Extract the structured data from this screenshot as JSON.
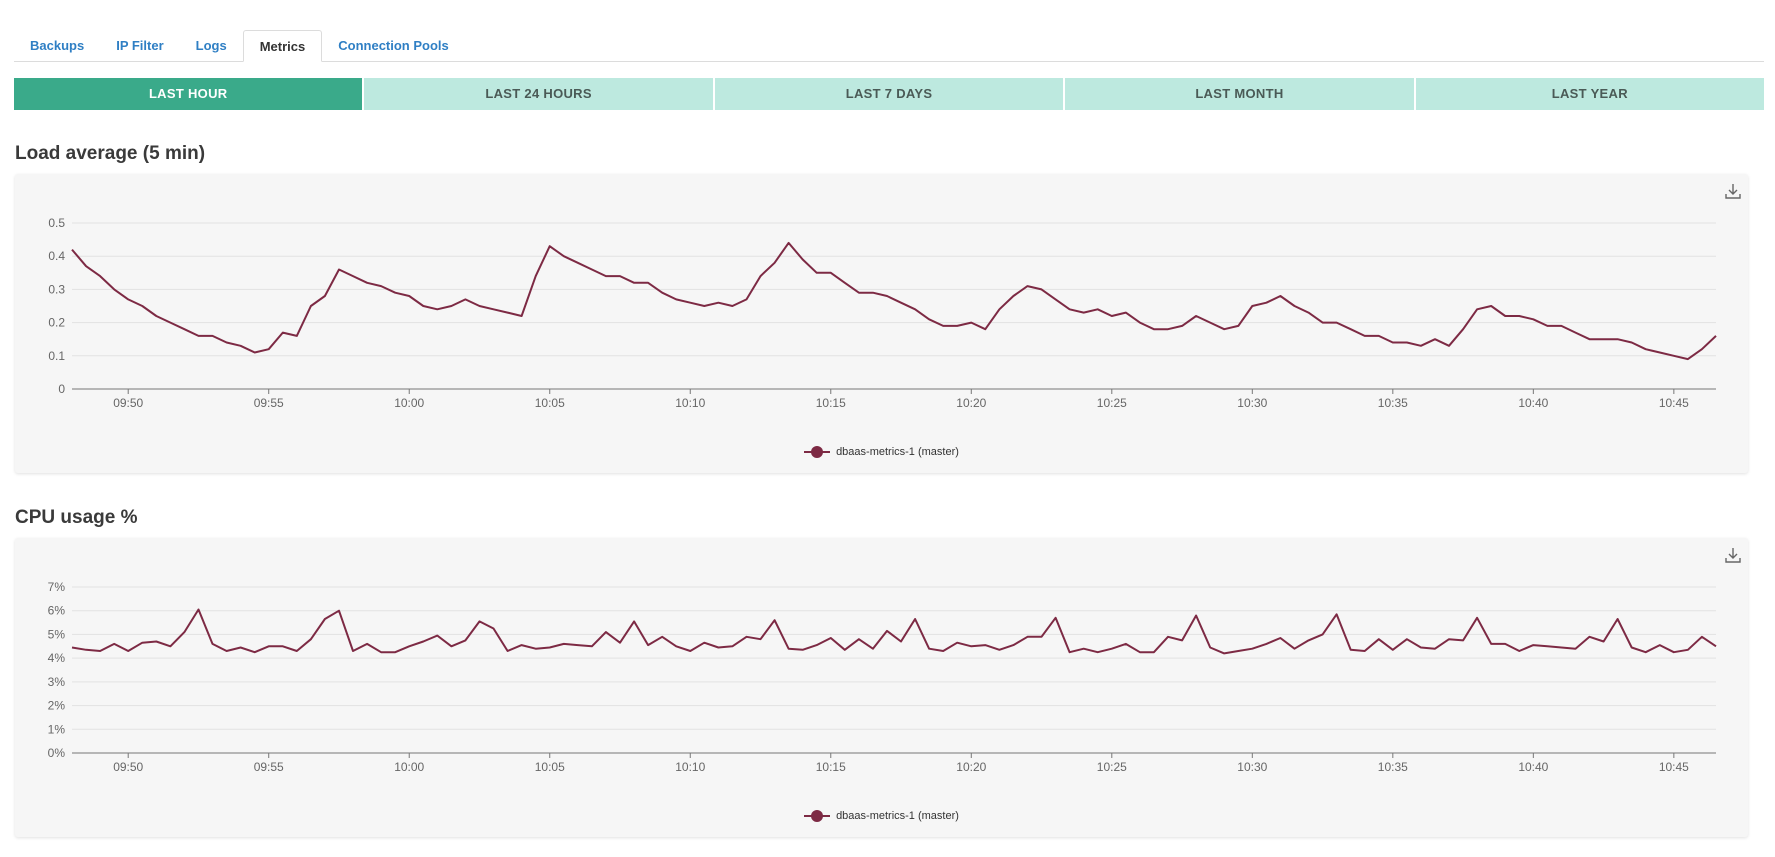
{
  "tabs": [
    {
      "label": "Backups",
      "active": false
    },
    {
      "label": "IP Filter",
      "active": false
    },
    {
      "label": "Logs",
      "active": false
    },
    {
      "label": "Metrics",
      "active": true
    },
    {
      "label": "Connection Pools",
      "active": false
    }
  ],
  "ranges": [
    {
      "label": "LAST HOUR",
      "active": true
    },
    {
      "label": "LAST 24 HOURS",
      "active": false
    },
    {
      "label": "LAST 7 DAYS",
      "active": false
    },
    {
      "label": "LAST MONTH",
      "active": false
    },
    {
      "label": "LAST YEAR",
      "active": false
    }
  ],
  "colors": {
    "accent": "#3aaa8a",
    "range_bg": "#bde9df",
    "series": "#7d2a44",
    "link": "#2f7fc4"
  },
  "chart_data": [
    {
      "type": "line",
      "title": "Load average (5 min)",
      "x_ticks": [
        "09:50",
        "09:55",
        "10:00",
        "10:05",
        "10:10",
        "10:15",
        "10:20",
        "10:25",
        "10:30",
        "10:35",
        "10:40",
        "10:45"
      ],
      "y_ticks": [
        "0",
        "0.1",
        "0.2",
        "0.3",
        "0.4",
        "0.5"
      ],
      "ylim": [
        0,
        0.5
      ],
      "xlim_minutes_from_first_tick": [
        -2,
        56.5
      ],
      "grid": true,
      "legend_position": "bottom-center",
      "download_icon": "download-icon",
      "series": [
        {
          "name": "dbaas-metrics-1 (master)",
          "color": "#7d2a44",
          "values": [
            0.42,
            0.37,
            0.34,
            0.3,
            0.27,
            0.25,
            0.22,
            0.2,
            0.18,
            0.16,
            0.16,
            0.14,
            0.13,
            0.11,
            0.12,
            0.17,
            0.16,
            0.25,
            0.28,
            0.36,
            0.34,
            0.32,
            0.31,
            0.29,
            0.28,
            0.25,
            0.24,
            0.25,
            0.27,
            0.25,
            0.24,
            0.23,
            0.22,
            0.34,
            0.43,
            0.4,
            0.38,
            0.36,
            0.34,
            0.34,
            0.32,
            0.32,
            0.29,
            0.27,
            0.26,
            0.25,
            0.26,
            0.25,
            0.27,
            0.34,
            0.38,
            0.44,
            0.39,
            0.35,
            0.35,
            0.32,
            0.29,
            0.29,
            0.28,
            0.26,
            0.24,
            0.21,
            0.19,
            0.19,
            0.2,
            0.18,
            0.24,
            0.28,
            0.31,
            0.3,
            0.27,
            0.24,
            0.23,
            0.24,
            0.22,
            0.23,
            0.2,
            0.18,
            0.18,
            0.19,
            0.22,
            0.2,
            0.18,
            0.19,
            0.25,
            0.26,
            0.28,
            0.25,
            0.23,
            0.2,
            0.2,
            0.18,
            0.16,
            0.16,
            0.14,
            0.14,
            0.13,
            0.15,
            0.13,
            0.18,
            0.24,
            0.25,
            0.22,
            0.22,
            0.21,
            0.19,
            0.19,
            0.17,
            0.15,
            0.15,
            0.15,
            0.14,
            0.12,
            0.11,
            0.1,
            0.09,
            0.12,
            0.16
          ]
        }
      ]
    },
    {
      "type": "line",
      "title": "CPU usage %",
      "x_ticks": [
        "09:50",
        "09:55",
        "10:00",
        "10:05",
        "10:10",
        "10:15",
        "10:20",
        "10:25",
        "10:30",
        "10:35",
        "10:40",
        "10:45"
      ],
      "y_ticks": [
        "0%",
        "1%",
        "2%",
        "3%",
        "4%",
        "5%",
        "6%",
        "7%"
      ],
      "ylim": [
        0,
        7
      ],
      "xlim_minutes_from_first_tick": [
        -2,
        56.5
      ],
      "grid": true,
      "legend_position": "bottom-center",
      "download_icon": "download-icon",
      "series": [
        {
          "name": "dbaas-metrics-1 (master)",
          "color": "#7d2a44",
          "values": [
            4.45,
            4.35,
            4.3,
            4.6,
            4.3,
            4.65,
            4.7,
            4.5,
            5.1,
            6.05,
            4.6,
            4.3,
            4.45,
            4.25,
            4.5,
            4.5,
            4.3,
            4.8,
            5.65,
            6.0,
            4.3,
            4.6,
            4.25,
            4.25,
            4.5,
            4.7,
            4.95,
            4.5,
            4.75,
            5.55,
            5.25,
            4.3,
            4.55,
            4.4,
            4.45,
            4.6,
            4.55,
            4.5,
            5.1,
            4.65,
            5.55,
            4.55,
            4.9,
            4.5,
            4.3,
            4.65,
            4.45,
            4.5,
            4.9,
            4.8,
            5.6,
            4.4,
            4.35,
            4.55,
            4.85,
            4.35,
            4.8,
            4.4,
            5.15,
            4.7,
            5.65,
            4.4,
            4.3,
            4.65,
            4.5,
            4.55,
            4.35,
            4.55,
            4.9,
            4.9,
            5.7,
            4.25,
            4.4,
            4.25,
            4.4,
            4.6,
            4.25,
            4.25,
            4.9,
            4.75,
            5.8,
            4.45,
            4.2,
            4.3,
            4.4,
            4.6,
            4.85,
            4.4,
            4.75,
            5.0,
            5.85,
            4.35,
            4.3,
            4.8,
            4.35,
            4.8,
            4.45,
            4.4,
            4.8,
            4.75,
            5.7,
            4.6,
            4.6,
            4.3,
            4.55,
            4.5,
            4.45,
            4.4,
            4.9,
            4.7,
            5.65,
            4.45,
            4.25,
            4.55,
            4.25,
            4.35,
            4.9,
            4.5
          ]
        }
      ]
    }
  ]
}
